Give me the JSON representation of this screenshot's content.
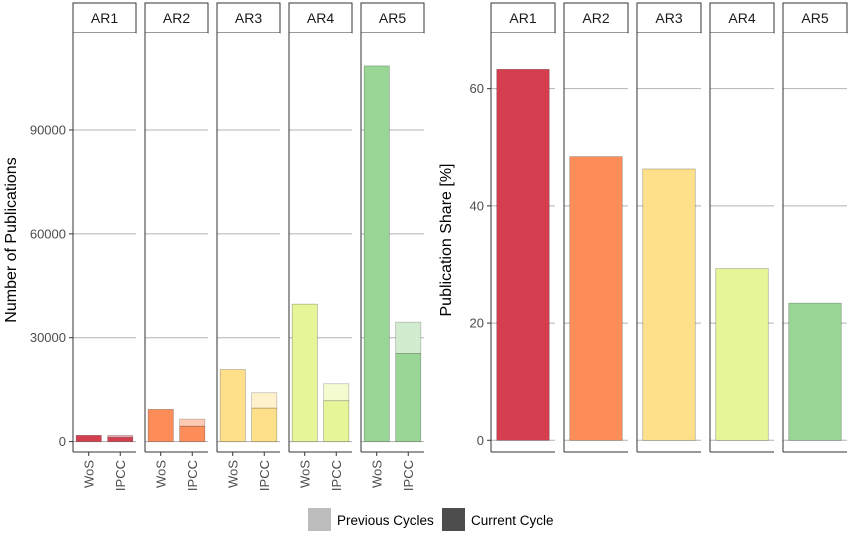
{
  "chart_data": [
    {
      "type": "bar",
      "title": "",
      "ylabel": "Number of Publications",
      "xlabel": "",
      "facets": [
        "AR1",
        "AR2",
        "AR3",
        "AR4",
        "AR5"
      ],
      "categories": [
        "WoS",
        "IPCC"
      ],
      "ylim": [
        -3000,
        118000
      ],
      "yticks": [
        0,
        30000,
        60000,
        90000
      ],
      "ytick_labels": [
        "0",
        "30000",
        "60000",
        "90000"
      ],
      "colors": [
        "#d53e4f",
        "#fc8d59",
        "#fee08b",
        "#e6f598",
        "#99d594"
      ],
      "series": [
        {
          "facet": "AR1",
          "wos": 1800,
          "ipcc_current": 1200,
          "ipcc_previous": 600
        },
        {
          "facet": "AR2",
          "wos": 9300,
          "ipcc_current": 4500,
          "ipcc_previous": 2000
        },
        {
          "facet": "AR3",
          "wos": 20800,
          "ipcc_current": 9700,
          "ipcc_previous": 4400
        },
        {
          "facet": "AR4",
          "wos": 39700,
          "ipcc_current": 11800,
          "ipcc_previous": 4900
        },
        {
          "facet": "AR5",
          "wos": 108500,
          "ipcc_current": 25500,
          "ipcc_previous": 9000
        }
      ]
    },
    {
      "type": "bar",
      "title": "",
      "ylabel": "Publication Share [%]",
      "xlabel": "",
      "categories": [
        "AR1",
        "AR2",
        "AR3",
        "AR4",
        "AR5"
      ],
      "values": [
        63.3,
        48.4,
        46.3,
        29.3,
        23.4
      ],
      "ylim": [
        -2,
        69.5
      ],
      "yticks": [
        0,
        20,
        40,
        60
      ],
      "ytick_labels": [
        "0",
        "20",
        "40",
        "60"
      ],
      "colors": [
        "#d53e4f",
        "#fc8d59",
        "#fee08b",
        "#e6f598",
        "#99d594"
      ]
    }
  ],
  "legend": {
    "items": [
      {
        "label": "Previous Cycles",
        "color": "#bdbdbd"
      },
      {
        "label": "Current Cycle",
        "color": "#4d4d4d"
      }
    ]
  }
}
